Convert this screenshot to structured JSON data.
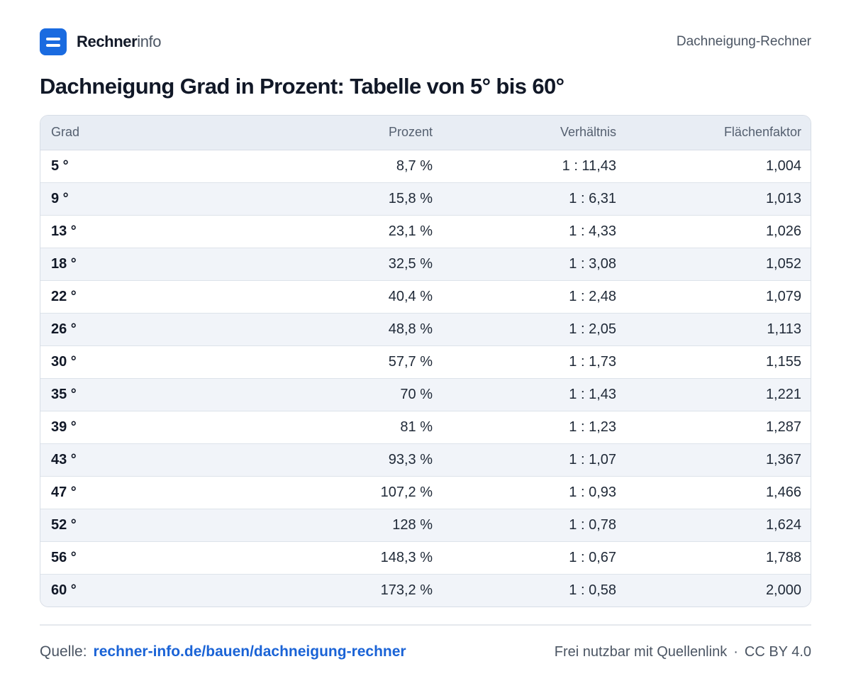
{
  "brand": {
    "bold": "Rechner",
    "light": "info"
  },
  "header": {
    "right_label": "Dachneigung-Rechner"
  },
  "title": "Dachneigung Grad in Prozent: Tabelle von 5° bis 60°",
  "table": {
    "headers": [
      "Grad",
      "Prozent",
      "Verhältnis",
      "Flächenfaktor"
    ],
    "rows": [
      [
        "5 °",
        "8,7 %",
        "1 : 11,43",
        "1,004"
      ],
      [
        "9 °",
        "15,8 %",
        "1 : 6,31",
        "1,013"
      ],
      [
        "13 °",
        "23,1 %",
        "1 : 4,33",
        "1,026"
      ],
      [
        "18 °",
        "32,5 %",
        "1 : 3,08",
        "1,052"
      ],
      [
        "22 °",
        "40,4 %",
        "1 : 2,48",
        "1,079"
      ],
      [
        "26 °",
        "48,8 %",
        "1 : 2,05",
        "1,113"
      ],
      [
        "30 °",
        "57,7 %",
        "1 : 1,73",
        "1,155"
      ],
      [
        "35 °",
        "70 %",
        "1 : 1,43",
        "1,221"
      ],
      [
        "39 °",
        "81 %",
        "1 : 1,23",
        "1,287"
      ],
      [
        "43 °",
        "93,3 %",
        "1 : 1,07",
        "1,367"
      ],
      [
        "47 °",
        "107,2 %",
        "1 : 0,93",
        "1,466"
      ],
      [
        "52 °",
        "128 %",
        "1 : 0,78",
        "1,624"
      ],
      [
        "56 °",
        "148,3 %",
        "1 : 0,67",
        "1,788"
      ],
      [
        "60 °",
        "173,2 %",
        "1 : 0,58",
        "2,000"
      ]
    ]
  },
  "footer": {
    "source_label": "Quelle:",
    "source_link": "rechner-info.de/bauen/dachneigung-rechner",
    "license_text": "Frei nutzbar mit Quellenlink",
    "separator": "·",
    "license_name": "CC BY 4.0"
  },
  "colors": {
    "accent": "#1a6be0",
    "link": "#1a63d6",
    "header_bg": "#e8edf4",
    "row_alt": "#f1f4f9"
  }
}
